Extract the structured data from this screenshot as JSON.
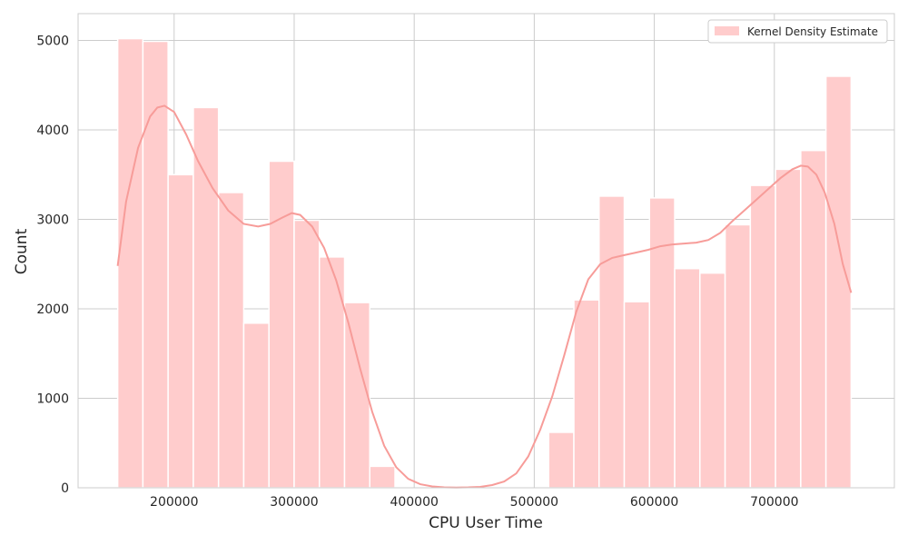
{
  "chart_data": {
    "type": "histogram",
    "xlabel": "CPU User Time",
    "ylabel": "Count",
    "xlim": [
      120000,
      800000
    ],
    "ylim": [
      0,
      5300
    ],
    "x_ticks": [
      200000,
      300000,
      400000,
      500000,
      600000,
      700000
    ],
    "y_ticks": [
      0,
      1000,
      2000,
      3000,
      4000,
      5000
    ],
    "grid": true,
    "legend": {
      "placement": "top-right",
      "entries": [
        "Kernel Density Estimate"
      ]
    },
    "colors": {
      "bar": "#ffcccc",
      "line": "#f79c99",
      "grid": "#cccccc",
      "edge": "#ffffff"
    },
    "bins": [
      {
        "x0": 153000,
        "x1": 174000,
        "count": 5020
      },
      {
        "x0": 174000,
        "x1": 195000,
        "count": 4990
      },
      {
        "x0": 195000,
        "x1": 216000,
        "count": 3500
      },
      {
        "x0": 216000,
        "x1": 237000,
        "count": 4250
      },
      {
        "x0": 237000,
        "x1": 258000,
        "count": 3300
      },
      {
        "x0": 258000,
        "x1": 279000,
        "count": 1840
      },
      {
        "x0": 279000,
        "x1": 300000,
        "count": 3650
      },
      {
        "x0": 300000,
        "x1": 321000,
        "count": 2990
      },
      {
        "x0": 321000,
        "x1": 342000,
        "count": 2580
      },
      {
        "x0": 342000,
        "x1": 363000,
        "count": 2070
      },
      {
        "x0": 363000,
        "x1": 384000,
        "count": 240
      },
      {
        "x0": 512000,
        "x1": 533000,
        "count": 620
      },
      {
        "x0": 533000,
        "x1": 554000,
        "count": 2100
      },
      {
        "x0": 554000,
        "x1": 575000,
        "count": 3260
      },
      {
        "x0": 575000,
        "x1": 596000,
        "count": 2080
      },
      {
        "x0": 596000,
        "x1": 617000,
        "count": 3240
      },
      {
        "x0": 617000,
        "x1": 638000,
        "count": 2450
      },
      {
        "x0": 638000,
        "x1": 659000,
        "count": 2400
      },
      {
        "x0": 659000,
        "x1": 680000,
        "count": 2940
      },
      {
        "x0": 680000,
        "x1": 701000,
        "count": 3380
      },
      {
        "x0": 701000,
        "x1": 722000,
        "count": 3560
      },
      {
        "x0": 722000,
        "x1": 743000,
        "count": 3770
      },
      {
        "x0": 743000,
        "x1": 764000,
        "count": 4600
      }
    ],
    "kde": {
      "x": [
        153000,
        160000,
        170000,
        180000,
        186000,
        192000,
        200000,
        210000,
        220000,
        232000,
        245000,
        258000,
        270000,
        280000,
        290000,
        298000,
        305000,
        315000,
        325000,
        335000,
        345000,
        355000,
        365000,
        375000,
        385000,
        395000,
        405000,
        415000,
        425000,
        435000,
        445000,
        455000,
        465000,
        475000,
        485000,
        495000,
        505000,
        515000,
        525000,
        535000,
        545000,
        555000,
        565000,
        575000,
        585000,
        595000,
        605000,
        615000,
        625000,
        635000,
        645000,
        655000,
        665000,
        675000,
        685000,
        695000,
        705000,
        715000,
        722000,
        728000,
        735000,
        742000,
        750000,
        757000,
        764000
      ],
      "y": [
        2480,
        3200,
        3800,
        4150,
        4250,
        4270,
        4200,
        3950,
        3650,
        3350,
        3100,
        2950,
        2920,
        2950,
        3020,
        3070,
        3050,
        2920,
        2680,
        2320,
        1850,
        1330,
        850,
        470,
        230,
        100,
        40,
        15,
        5,
        3,
        5,
        10,
        30,
        70,
        160,
        350,
        650,
        1020,
        1480,
        1970,
        2330,
        2500,
        2570,
        2600,
        2630,
        2660,
        2700,
        2720,
        2730,
        2740,
        2770,
        2850,
        2980,
        3100,
        3220,
        3340,
        3460,
        3560,
        3600,
        3590,
        3500,
        3300,
        2950,
        2500,
        2180
      ]
    }
  }
}
